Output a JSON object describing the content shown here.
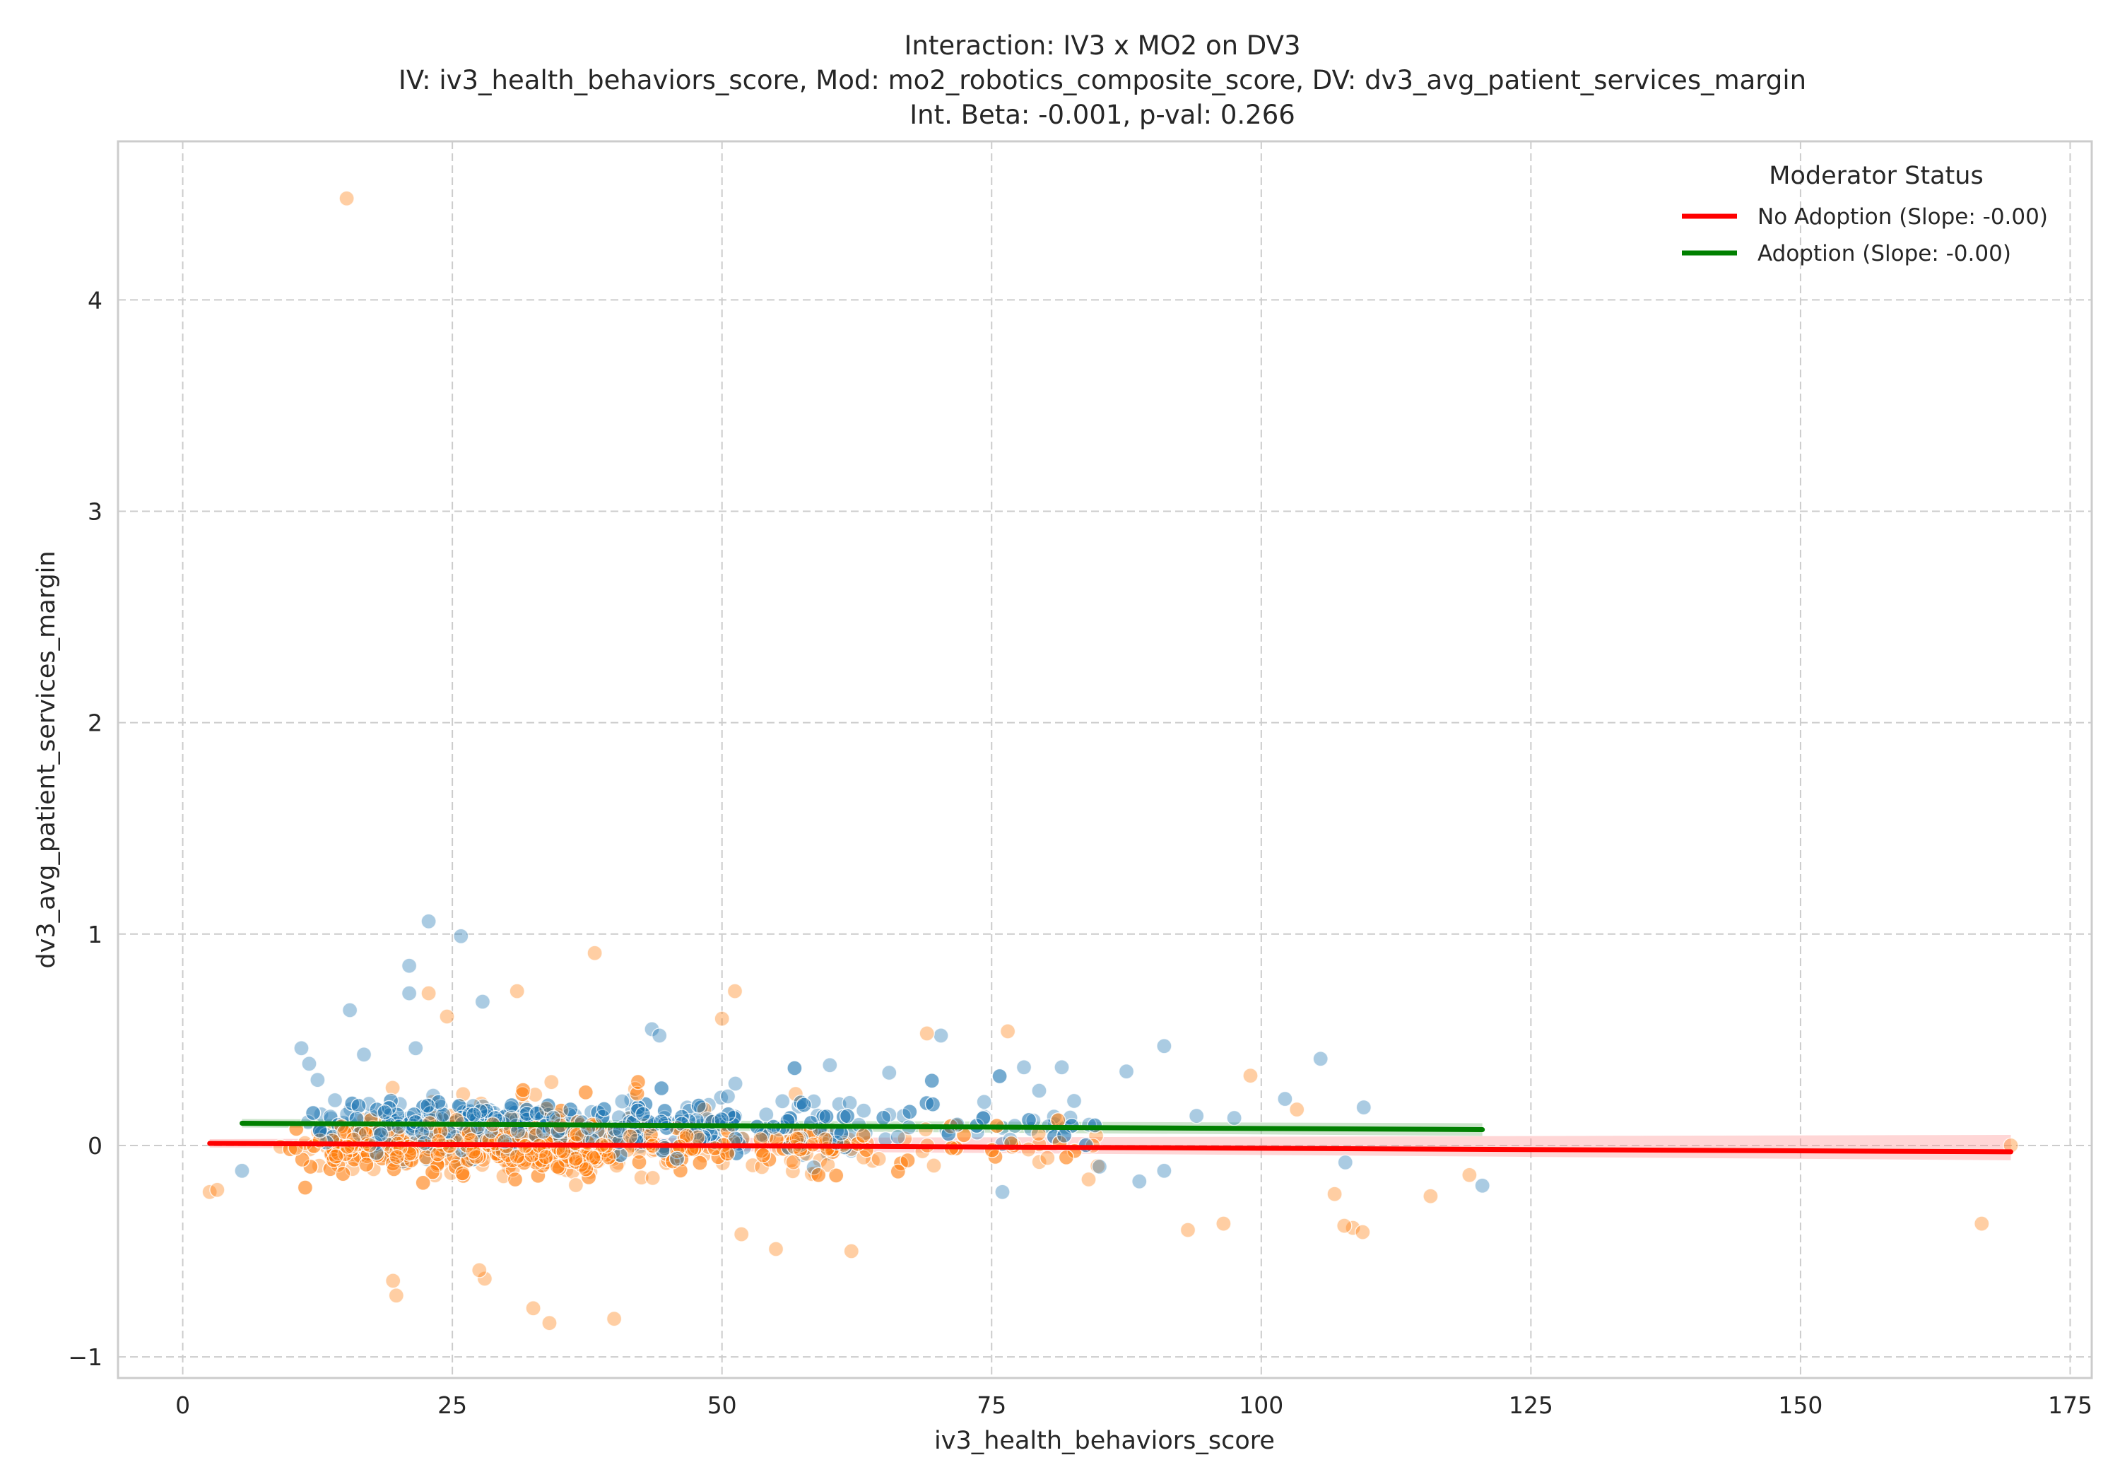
{
  "chart_data": {
    "type": "scatter",
    "title_lines": [
      "Interaction: IV3 x MO2 on DV3",
      "IV: iv3_health_behaviors_score, Mod: mo2_robotics_composite_score, DV: dv3_avg_patient_services_margin",
      "Int. Beta: -0.001, p-val: 0.266"
    ],
    "xlabel": "iv3_health_behaviors_score",
    "ylabel": "dv3_avg_patient_services_margin",
    "xlim": [
      -6,
      177
    ],
    "ylim": [
      -1.1,
      4.75
    ],
    "xticks": [
      0,
      25,
      50,
      75,
      100,
      125,
      150,
      175
    ],
    "yticks": [
      -1,
      0,
      1,
      2,
      3,
      4
    ],
    "xtick_labels": [
      "0",
      "25",
      "50",
      "75",
      "100",
      "125",
      "150",
      "175"
    ],
    "ytick_labels": [
      "−1",
      "0",
      "1",
      "2",
      "3",
      "4"
    ],
    "grid": true,
    "legend": {
      "title": "Moderator Status",
      "placement": "top-right",
      "entries": [
        {
          "label": "No Adoption (Slope: -0.00)",
          "color": "#ff0000"
        },
        {
          "label": "Adoption (Slope: -0.00)",
          "color": "#008000"
        }
      ]
    },
    "scatter_colors": {
      "orange": "#ff7f0e",
      "blue": "#1f77b4"
    },
    "fit_lines": [
      {
        "legend_index": 0,
        "color": "#ff0000",
        "band_color": "#ff9999",
        "x": [
          2.5,
          169.5
        ],
        "y": [
          0.01,
          -0.03
        ],
        "band_start": [
          -0.01,
          0.03
        ],
        "band_end": [
          -0.07,
          0.05
        ]
      },
      {
        "legend_index": 1,
        "color": "#008000",
        "band_color": "#7fbf7f",
        "x": [
          5.5,
          120.5
        ],
        "y": [
          0.105,
          0.075
        ],
        "band_start": [
          0.085,
          0.125
        ],
        "band_end": [
          0.045,
          0.105
        ]
      }
    ],
    "highlighted_points": [
      {
        "color": "orange",
        "x": 15.2,
        "y": 4.48
      },
      {
        "color": "blue",
        "x": 22.8,
        "y": 1.06
      },
      {
        "color": "blue",
        "x": 25.8,
        "y": 0.99
      },
      {
        "color": "blue",
        "x": 21.0,
        "y": 0.85
      },
      {
        "color": "blue",
        "x": 21.0,
        "y": 0.72
      },
      {
        "color": "orange",
        "x": 38.2,
        "y": 0.91
      },
      {
        "color": "orange",
        "x": 51.2,
        "y": 0.73
      },
      {
        "color": "orange",
        "x": 31.0,
        "y": 0.73
      },
      {
        "color": "blue",
        "x": 15.5,
        "y": 0.64
      },
      {
        "color": "orange",
        "x": 50.0,
        "y": 0.6
      },
      {
        "color": "blue",
        "x": 43.5,
        "y": 0.55
      },
      {
        "color": "blue",
        "x": 44.2,
        "y": 0.52
      },
      {
        "color": "orange",
        "x": 76.5,
        "y": 0.54
      },
      {
        "color": "blue",
        "x": 70.3,
        "y": 0.52
      },
      {
        "color": "orange",
        "x": 69.0,
        "y": 0.53
      },
      {
        "color": "blue",
        "x": 91.0,
        "y": 0.47
      },
      {
        "color": "blue",
        "x": 105.5,
        "y": 0.41
      },
      {
        "color": "orange",
        "x": 99.0,
        "y": 0.33
      },
      {
        "color": "orange",
        "x": 103.3,
        "y": 0.17
      },
      {
        "color": "blue",
        "x": 109.5,
        "y": 0.18
      },
      {
        "color": "orange",
        "x": 166.8,
        "y": -0.37
      },
      {
        "color": "orange",
        "x": 169.5,
        "y": 0.0
      },
      {
        "color": "orange",
        "x": 115.7,
        "y": -0.24
      },
      {
        "color": "orange",
        "x": 119.3,
        "y": -0.14
      },
      {
        "color": "blue",
        "x": 120.5,
        "y": -0.19
      },
      {
        "color": "orange",
        "x": 108.5,
        "y": -0.39
      },
      {
        "color": "orange",
        "x": 109.4,
        "y": -0.41
      },
      {
        "color": "orange",
        "x": 107.7,
        "y": -0.38
      },
      {
        "color": "orange",
        "x": 106.8,
        "y": -0.23
      },
      {
        "color": "orange",
        "x": 96.5,
        "y": -0.37
      },
      {
        "color": "orange",
        "x": 93.2,
        "y": -0.4
      },
      {
        "color": "orange",
        "x": 62.0,
        "y": -0.5
      },
      {
        "color": "orange",
        "x": 55.0,
        "y": -0.49
      },
      {
        "color": "orange",
        "x": 51.8,
        "y": -0.42
      },
      {
        "color": "orange",
        "x": 40.0,
        "y": -0.82
      },
      {
        "color": "orange",
        "x": 34.0,
        "y": -0.84
      },
      {
        "color": "orange",
        "x": 32.5,
        "y": -0.77
      },
      {
        "color": "orange",
        "x": 28.0,
        "y": -0.63
      },
      {
        "color": "orange",
        "x": 27.5,
        "y": -0.59
      },
      {
        "color": "orange",
        "x": 19.5,
        "y": -0.64
      },
      {
        "color": "orange",
        "x": 19.8,
        "y": -0.71
      },
      {
        "color": "blue",
        "x": 5.5,
        "y": -0.12
      },
      {
        "color": "orange",
        "x": 2.5,
        "y": -0.22
      },
      {
        "color": "orange",
        "x": 3.2,
        "y": -0.21
      },
      {
        "color": "blue",
        "x": 11.0,
        "y": 0.46
      },
      {
        "color": "blue",
        "x": 12.5,
        "y": 0.31
      },
      {
        "color": "blue",
        "x": 16.8,
        "y": 0.43
      },
      {
        "color": "blue",
        "x": 21.6,
        "y": 0.46
      },
      {
        "color": "blue",
        "x": 27.8,
        "y": 0.68
      },
      {
        "color": "orange",
        "x": 24.5,
        "y": 0.61
      },
      {
        "color": "orange",
        "x": 22.8,
        "y": 0.72
      },
      {
        "color": "blue",
        "x": 60.0,
        "y": 0.38
      },
      {
        "color": "blue",
        "x": 78.0,
        "y": 0.37
      },
      {
        "color": "blue",
        "x": 81.5,
        "y": 0.37
      },
      {
        "color": "blue",
        "x": 87.5,
        "y": 0.35
      },
      {
        "color": "blue",
        "x": 102.2,
        "y": 0.22
      },
      {
        "color": "blue",
        "x": 94.0,
        "y": 0.14
      },
      {
        "color": "blue",
        "x": 97.5,
        "y": 0.13
      },
      {
        "color": "blue",
        "x": 91.0,
        "y": -0.12
      },
      {
        "color": "blue",
        "x": 88.7,
        "y": -0.17
      },
      {
        "color": "blue",
        "x": 85.0,
        "y": -0.1
      },
      {
        "color": "blue",
        "x": 76.0,
        "y": -0.22
      },
      {
        "color": "blue",
        "x": 107.8,
        "y": -0.08
      }
    ]
  }
}
